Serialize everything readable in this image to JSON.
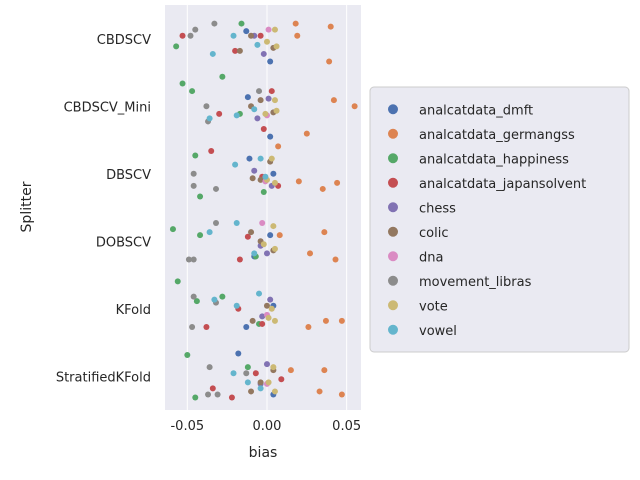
{
  "chart_data": {
    "type": "scatter",
    "style": "categorical strip plot with jitter",
    "xlabel": "bias",
    "ylabel": "Splitter",
    "xlim": [
      -0.064,
      0.059
    ],
    "xticks": [
      -0.05,
      0.0,
      0.05
    ],
    "xtick_labels": [
      "-0.05",
      "0.00",
      "0.05"
    ],
    "grid": true,
    "legend_position": "right",
    "categories": [
      "CBDSCV",
      "CBDSCV_Mini",
      "DBSCV",
      "DOBSCV",
      "KFold",
      "StratifiedKFold"
    ],
    "series": [
      {
        "name": "analcatdata_dmft",
        "color": "#4c72b0",
        "points": [
          [
            "CBDSCV",
            -0.013,
            -0.005
          ],
          [
            "CBDSCV",
            0.002,
            0.015
          ],
          [
            "CBDSCV_Mini",
            -0.012,
            -0.006
          ],
          [
            "CBDSCV_Mini",
            0.002,
            0.02
          ],
          [
            "DBSCV",
            -0.011,
            -0.01
          ],
          [
            "DBSCV",
            0.004,
            0.0
          ],
          [
            "DOBSCV",
            -0.008,
            0.01
          ],
          [
            "DOBSCV",
            0.002,
            -0.004
          ],
          [
            "KFold",
            -0.013,
            0.012
          ],
          [
            "KFold",
            0.004,
            -0.002
          ],
          [
            "StratifiedKFold",
            -0.018,
            -0.015
          ],
          [
            "StratifiedKFold",
            0.004,
            0.012
          ]
        ]
      },
      {
        "name": "analcatdata_germangss",
        "color": "#dd8452",
        "points": [
          [
            "CBDSCV",
            0.018,
            -0.01
          ],
          [
            "CBDSCV",
            0.019,
            -0.002
          ],
          [
            "CBDSCV",
            0.039,
            0.015
          ],
          [
            "CBDSCV",
            0.04,
            -0.008
          ],
          [
            "CBDSCV_Mini",
            0.025,
            0.018
          ],
          [
            "CBDSCV_Mini",
            0.042,
            -0.004
          ],
          [
            "CBDSCV_Mini",
            0.055,
            0.0
          ],
          [
            "DBSCV",
            0.02,
            0.005
          ],
          [
            "DBSCV",
            0.035,
            0.01
          ],
          [
            "DBSCV",
            0.044,
            0.006
          ],
          [
            "DBSCV",
            0.007,
            -0.018
          ],
          [
            "DOBSCV",
            0.027,
            0.008
          ],
          [
            "DOBSCV",
            0.036,
            -0.006
          ],
          [
            "DOBSCV",
            0.043,
            0.012
          ],
          [
            "DOBSCV",
            0.008,
            -0.004
          ],
          [
            "KFold",
            0.026,
            0.012
          ],
          [
            "KFold",
            0.037,
            0.008
          ],
          [
            "KFold",
            0.047,
            0.008
          ],
          [
            "StratifiedKFold",
            0.015,
            -0.004
          ],
          [
            "StratifiedKFold",
            0.033,
            0.01
          ],
          [
            "StratifiedKFold",
            0.036,
            -0.004
          ],
          [
            "StratifiedKFold",
            0.047,
            0.012
          ]
        ]
      },
      {
        "name": "analcatdata_happiness",
        "color": "#55a868",
        "points": [
          [
            "CBDSCV",
            -0.057,
            0.005
          ],
          [
            "CBDSCV",
            -0.028,
            0.025
          ],
          [
            "CBDSCV",
            -0.016,
            -0.01
          ],
          [
            "CBDSCV_Mini",
            -0.053,
            -0.015
          ],
          [
            "CBDSCV_Mini",
            -0.047,
            -0.01
          ],
          [
            "CBDSCV_Mini",
            -0.017,
            0.005
          ],
          [
            "DBSCV",
            -0.045,
            -0.012
          ],
          [
            "DBSCV",
            -0.042,
            0.015
          ],
          [
            "DBSCV",
            -0.002,
            0.012
          ],
          [
            "DOBSCV",
            -0.059,
            -0.008
          ],
          [
            "DOBSCV",
            -0.042,
            -0.004
          ],
          [
            "DOBSCV",
            -0.007,
            0.01
          ],
          [
            "KFold",
            -0.056,
            -0.018
          ],
          [
            "KFold",
            -0.044,
            -0.005
          ],
          [
            "KFold",
            -0.028,
            -0.008
          ],
          [
            "KFold",
            -0.005,
            0.01
          ],
          [
            "StratifiedKFold",
            -0.05,
            -0.014
          ],
          [
            "StratifiedKFold",
            -0.045,
            0.014
          ],
          [
            "StratifiedKFold",
            -0.012,
            -0.006
          ]
        ]
      },
      {
        "name": "analcatdata_japansolvent",
        "color": "#c44e52",
        "points": [
          [
            "CBDSCV",
            -0.053,
            -0.002
          ],
          [
            "CBDSCV",
            -0.02,
            0.008
          ],
          [
            "CBDSCV",
            -0.004,
            -0.002
          ],
          [
            "CBDSCV_Mini",
            -0.03,
            0.005
          ],
          [
            "CBDSCV_Mini",
            0.003,
            -0.01
          ],
          [
            "CBDSCV_Mini",
            -0.002,
            0.015
          ],
          [
            "DBSCV",
            -0.035,
            -0.015
          ],
          [
            "DBSCV",
            0.007,
            0.008
          ],
          [
            "DBSCV",
            -0.003,
            0.002
          ],
          [
            "DOBSCV",
            -0.017,
            0.012
          ],
          [
            "DOBSCV",
            -0.012,
            -0.003
          ],
          [
            "KFold",
            -0.038,
            0.012
          ],
          [
            "KFold",
            -0.018,
            0.0
          ],
          [
            "KFold",
            -0.003,
            0.01
          ],
          [
            "StratifiedKFold",
            -0.034,
            0.008
          ],
          [
            "StratifiedKFold",
            -0.022,
            0.014
          ],
          [
            "StratifiedKFold",
            0.009,
            0.002
          ],
          [
            "StratifiedKFold",
            -0.007,
            -0.002
          ]
        ]
      },
      {
        "name": "chess",
        "color": "#8172b3",
        "points": [
          [
            "CBDSCV",
            -0.002,
            0.01
          ],
          [
            "CBDSCV",
            -0.008,
            -0.002
          ],
          [
            "CBDSCV_Mini",
            -0.006,
            0.008
          ],
          [
            "CBDSCV_Mini",
            0.001,
            -0.005
          ],
          [
            "DBSCV",
            -0.008,
            -0.002
          ],
          [
            "DBSCV",
            0.003,
            0.008
          ],
          [
            "DOBSCV",
            -0.004,
            0.003
          ],
          [
            "DOBSCV",
            0.0,
            0.008
          ],
          [
            "KFold",
            -0.003,
            0.005
          ],
          [
            "KFold",
            0.002,
            -0.006
          ],
          [
            "StratifiedKFold",
            -0.004,
            0.005
          ],
          [
            "StratifiedKFold",
            0.0,
            -0.008
          ]
        ]
      },
      {
        "name": "colic",
        "color": "#937860",
        "points": [
          [
            "CBDSCV",
            -0.017,
            0.008
          ],
          [
            "CBDSCV",
            -0.01,
            -0.002
          ],
          [
            "CBDSCV",
            0.004,
            0.006
          ],
          [
            "CBDSCV_Mini",
            -0.01,
            0.0
          ],
          [
            "CBDSCV_Mini",
            0.004,
            0.004
          ],
          [
            "CBDSCV_Mini",
            -0.004,
            -0.004
          ],
          [
            "DBSCV",
            -0.009,
            0.003
          ],
          [
            "DBSCV",
            -0.004,
            0.004
          ],
          [
            "DBSCV",
            0.002,
            -0.008
          ],
          [
            "DOBSCV",
            -0.01,
            -0.006
          ],
          [
            "DOBSCV",
            0.004,
            0.006
          ],
          [
            "DOBSCV",
            -0.004,
            0.0
          ],
          [
            "KFold",
            -0.009,
            0.008
          ],
          [
            "KFold",
            0.0,
            -0.002
          ],
          [
            "StratifiedKFold",
            -0.01,
            0.01
          ],
          [
            "StratifiedKFold",
            -0.004,
            0.004
          ],
          [
            "StratifiedKFold",
            0.004,
            -0.004
          ]
        ]
      },
      {
        "name": "dna",
        "color": "#da8bc3",
        "points": [
          [
            "CBDSCV",
            0.001,
            -0.006
          ],
          [
            "CBDSCV_Mini",
            0.0,
            0.006
          ],
          [
            "DBSCV",
            -0.001,
            0.005
          ],
          [
            "DOBSCV",
            -0.003,
            -0.012
          ],
          [
            "KFold",
            0.0,
            0.004
          ],
          [
            "StratifiedKFold",
            0.0,
            0.005
          ]
        ]
      },
      {
        "name": "movement_libras",
        "color": "#8c8c8c",
        "points": [
          [
            "CBDSCV",
            -0.048,
            -0.002
          ],
          [
            "CBDSCV",
            -0.045,
            -0.006
          ],
          [
            "CBDSCV",
            -0.033,
            -0.01
          ],
          [
            "CBDSCV_Mini",
            -0.038,
            0.0
          ],
          [
            "CBDSCV_Mini",
            -0.037,
            0.01
          ],
          [
            "CBDSCV_Mini",
            -0.005,
            -0.01
          ],
          [
            "DBSCV",
            -0.046,
            0.008
          ],
          [
            "DBSCV",
            -0.046,
            0.0
          ],
          [
            "DBSCV",
            -0.032,
            0.01
          ],
          [
            "DOBSCV",
            -0.049,
            0.012
          ],
          [
            "DOBSCV",
            -0.046,
            0.012
          ],
          [
            "DOBSCV",
            -0.032,
            -0.012
          ],
          [
            "KFold",
            -0.047,
            0.012
          ],
          [
            "KFold",
            -0.046,
            -0.008
          ],
          [
            "KFold",
            -0.032,
            -0.004
          ],
          [
            "StratifiedKFold",
            -0.037,
            0.012
          ],
          [
            "StratifiedKFold",
            -0.036,
            -0.006
          ],
          [
            "StratifiedKFold",
            -0.031,
            0.012
          ],
          [
            "StratifiedKFold",
            -0.013,
            -0.002
          ]
        ]
      },
      {
        "name": "vote",
        "color": "#ccb974",
        "points": [
          [
            "CBDSCV",
            0.005,
            -0.006
          ],
          [
            "CBDSCV",
            0.006,
            0.005
          ],
          [
            "CBDSCV",
            0.0,
            0.002
          ],
          [
            "CBDSCV_Mini",
            0.005,
            -0.004
          ],
          [
            "CBDSCV_Mini",
            0.006,
            0.003
          ],
          [
            "CBDSCV_Mini",
            -0.001,
            0.005
          ],
          [
            "DBSCV",
            0.003,
            -0.01
          ],
          [
            "DBSCV",
            0.005,
            0.006
          ],
          [
            "DBSCV",
            0.0,
            0.004
          ],
          [
            "DOBSCV",
            0.004,
            -0.01
          ],
          [
            "DOBSCV",
            0.005,
            0.005
          ],
          [
            "DOBSCV",
            -0.002,
            0.002
          ],
          [
            "KFold",
            0.003,
            0.0
          ],
          [
            "KFold",
            0.005,
            0.008
          ],
          [
            "KFold",
            0.001,
            0.006
          ],
          [
            "StratifiedKFold",
            0.004,
            -0.006
          ],
          [
            "StratifiedKFold",
            0.005,
            0.01
          ],
          [
            "StratifiedKFold",
            0.001,
            0.004
          ]
        ]
      },
      {
        "name": "vowel",
        "color": "#64b5cd",
        "points": [
          [
            "CBDSCV",
            -0.034,
            0.01
          ],
          [
            "CBDSCV",
            -0.021,
            -0.002
          ],
          [
            "CBDSCV",
            -0.006,
            0.004
          ],
          [
            "CBDSCV_Mini",
            -0.036,
            0.008
          ],
          [
            "CBDSCV_Mini",
            -0.019,
            0.006
          ],
          [
            "CBDSCV_Mini",
            -0.008,
            0.002
          ],
          [
            "DBSCV",
            -0.02,
            -0.006
          ],
          [
            "DBSCV",
            -0.004,
            -0.01
          ],
          [
            "DBSCV",
            -0.001,
            0.002
          ],
          [
            "DOBSCV",
            -0.036,
            -0.006
          ],
          [
            "DOBSCV",
            -0.019,
            -0.012
          ],
          [
            "DOBSCV",
            -0.008,
            0.008
          ],
          [
            "KFold",
            -0.033,
            -0.006
          ],
          [
            "KFold",
            -0.019,
            -0.002
          ],
          [
            "KFold",
            -0.005,
            -0.01
          ],
          [
            "StratifiedKFold",
            -0.021,
            -0.002
          ],
          [
            "StratifiedKFold",
            -0.012,
            0.004
          ],
          [
            "StratifiedKFold",
            -0.004,
            0.008
          ]
        ]
      }
    ]
  },
  "colors": {
    "axes_background": "#eaeaf2",
    "grid": "#ffffff",
    "text": "#262626",
    "legend_border": "#cccccc"
  }
}
